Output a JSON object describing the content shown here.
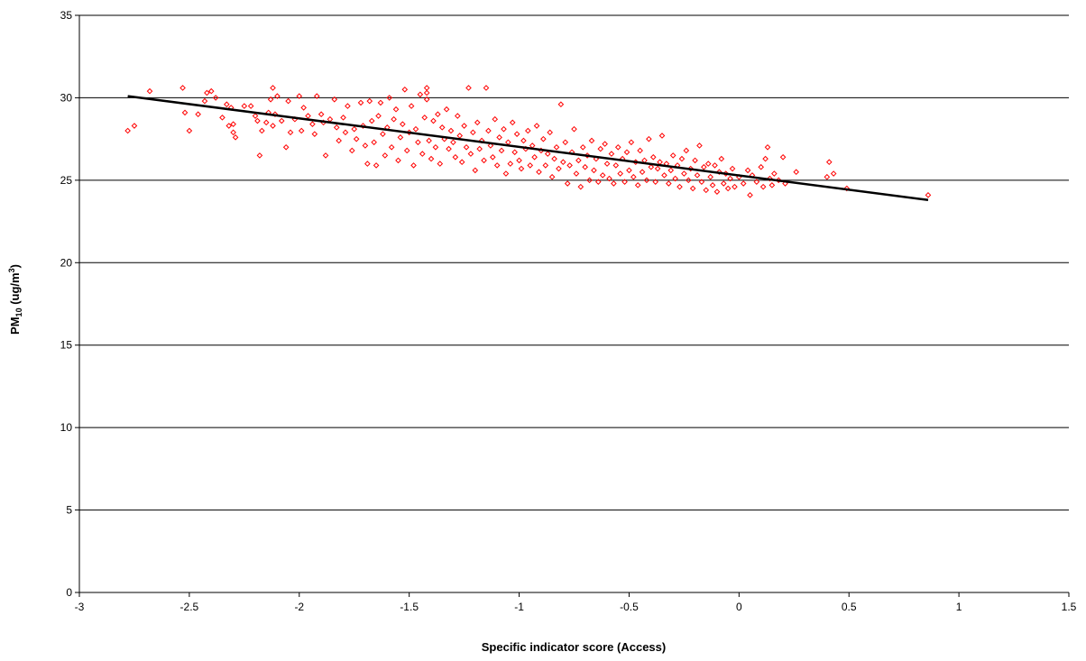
{
  "chart_data": {
    "type": "scatter",
    "title": "",
    "xlabel": "Specific indicator score (Access)",
    "ylabel": {
      "base": "PM",
      "sub": "10",
      "unit_pre": " (ug/m",
      "sup": "3",
      "unit_post": ")"
    },
    "xlim": [
      -3,
      1.5
    ],
    "ylim": [
      0,
      35
    ],
    "x_ticks": [
      -3,
      -2.5,
      -2,
      -1.5,
      -1,
      -0.5,
      0,
      0.5,
      1,
      1.5
    ],
    "x_tick_labels": [
      "-3",
      "-2.5",
      "-2",
      "-1.5",
      "-1",
      "-0.5",
      "0",
      "0.5",
      "1",
      "1.5"
    ],
    "y_ticks": [
      0,
      5,
      10,
      15,
      20,
      25,
      30,
      35
    ],
    "y_tick_labels": [
      "0",
      "5",
      "10",
      "15",
      "20",
      "25",
      "30",
      "35"
    ],
    "grid": {
      "horizontal": true,
      "vertical": false
    },
    "legend": "none",
    "colors": {
      "points": "#ff0000",
      "trendline": "#000000",
      "grid": "#000000"
    },
    "trendline": {
      "x": [
        -2.78,
        0.86
      ],
      "y": [
        30.1,
        23.8
      ]
    },
    "series": [
      {
        "points": [
          [
            -2.78,
            28.0
          ],
          [
            -2.75,
            28.3
          ],
          [
            -2.68,
            30.4
          ],
          [
            -2.53,
            30.6
          ],
          [
            -2.52,
            29.1
          ],
          [
            -2.5,
            28.0
          ],
          [
            -2.46,
            29.0
          ],
          [
            -2.43,
            29.8
          ],
          [
            -2.42,
            30.3
          ],
          [
            -2.4,
            30.4
          ],
          [
            -2.38,
            30.0
          ],
          [
            -2.35,
            28.8
          ],
          [
            -2.33,
            29.6
          ],
          [
            -2.32,
            28.3
          ],
          [
            -2.31,
            29.4
          ],
          [
            -2.3,
            27.9
          ],
          [
            -2.3,
            28.4
          ],
          [
            -2.29,
            27.6
          ],
          [
            -2.25,
            29.5
          ],
          [
            -2.22,
            29.5
          ],
          [
            -2.2,
            28.9
          ],
          [
            -2.19,
            28.6
          ],
          [
            -2.18,
            26.5
          ],
          [
            -2.17,
            28.0
          ],
          [
            -2.15,
            28.5
          ],
          [
            -2.14,
            29.1
          ],
          [
            -2.13,
            29.9
          ],
          [
            -2.12,
            28.3
          ],
          [
            -2.12,
            30.6
          ],
          [
            -2.11,
            29.0
          ],
          [
            -2.1,
            30.1
          ],
          [
            -2.08,
            28.6
          ],
          [
            -2.06,
            27.0
          ],
          [
            -2.05,
            29.8
          ],
          [
            -2.04,
            27.9
          ],
          [
            -2.02,
            28.7
          ],
          [
            -2.0,
            30.1
          ],
          [
            -1.99,
            28.0
          ],
          [
            -1.98,
            29.4
          ],
          [
            -1.96,
            28.9
          ],
          [
            -1.94,
            28.4
          ],
          [
            -1.93,
            27.8
          ],
          [
            -1.92,
            30.1
          ],
          [
            -1.9,
            29.0
          ],
          [
            -1.89,
            28.5
          ],
          [
            -1.88,
            26.5
          ],
          [
            -1.86,
            28.7
          ],
          [
            -1.84,
            29.9
          ],
          [
            -1.83,
            28.2
          ],
          [
            -1.82,
            27.4
          ],
          [
            -1.8,
            28.8
          ],
          [
            -1.79,
            27.9
          ],
          [
            -1.78,
            29.5
          ],
          [
            -1.76,
            26.8
          ],
          [
            -1.75,
            28.1
          ],
          [
            -1.74,
            27.5
          ],
          [
            -1.72,
            29.7
          ],
          [
            -1.71,
            28.3
          ],
          [
            -1.7,
            27.1
          ],
          [
            -1.69,
            26.0
          ],
          [
            -1.68,
            29.8
          ],
          [
            -1.67,
            28.6
          ],
          [
            -1.66,
            27.3
          ],
          [
            -1.65,
            25.9
          ],
          [
            -1.64,
            28.9
          ],
          [
            -1.63,
            29.7
          ],
          [
            -1.62,
            27.8
          ],
          [
            -1.61,
            26.5
          ],
          [
            -1.6,
            28.2
          ],
          [
            -1.59,
            30.0
          ],
          [
            -1.58,
            27.0
          ],
          [
            -1.57,
            28.7
          ],
          [
            -1.56,
            29.3
          ],
          [
            -1.55,
            26.2
          ],
          [
            -1.54,
            27.6
          ],
          [
            -1.53,
            28.4
          ],
          [
            -1.52,
            30.5
          ],
          [
            -1.51,
            26.8
          ],
          [
            -1.5,
            27.9
          ],
          [
            -1.49,
            29.5
          ],
          [
            -1.48,
            25.9
          ],
          [
            -1.47,
            28.1
          ],
          [
            -1.46,
            27.3
          ],
          [
            -1.45,
            30.2
          ],
          [
            -1.44,
            26.6
          ],
          [
            -1.43,
            28.8
          ],
          [
            -1.42,
            30.6
          ],
          [
            -1.42,
            30.3
          ],
          [
            -1.42,
            29.9
          ],
          [
            -1.41,
            27.4
          ],
          [
            -1.4,
            26.3
          ],
          [
            -1.39,
            28.6
          ],
          [
            -1.38,
            27.0
          ],
          [
            -1.37,
            29.0
          ],
          [
            -1.36,
            26.0
          ],
          [
            -1.35,
            28.2
          ],
          [
            -1.34,
            27.5
          ],
          [
            -1.33,
            29.3
          ],
          [
            -1.32,
            26.9
          ],
          [
            -1.31,
            28.0
          ],
          [
            -1.3,
            27.3
          ],
          [
            -1.29,
            26.4
          ],
          [
            -1.28,
            28.9
          ],
          [
            -1.27,
            27.7
          ],
          [
            -1.26,
            26.1
          ],
          [
            -1.25,
            28.3
          ],
          [
            -1.24,
            27.0
          ],
          [
            -1.23,
            30.6
          ],
          [
            -1.22,
            26.6
          ],
          [
            -1.21,
            27.9
          ],
          [
            -1.2,
            25.6
          ],
          [
            -1.19,
            28.5
          ],
          [
            -1.18,
            26.9
          ],
          [
            -1.17,
            27.4
          ],
          [
            -1.16,
            26.2
          ],
          [
            -1.15,
            30.6
          ],
          [
            -1.14,
            28.0
          ],
          [
            -1.13,
            27.1
          ],
          [
            -1.12,
            26.4
          ],
          [
            -1.11,
            28.7
          ],
          [
            -1.1,
            25.9
          ],
          [
            -1.09,
            27.6
          ],
          [
            -1.08,
            26.8
          ],
          [
            -1.07,
            28.1
          ],
          [
            -1.06,
            25.4
          ],
          [
            -1.05,
            27.3
          ],
          [
            -1.04,
            26.0
          ],
          [
            -1.03,
            28.5
          ],
          [
            -1.02,
            26.7
          ],
          [
            -1.01,
            27.8
          ],
          [
            -1.0,
            26.2
          ],
          [
            -0.99,
            25.7
          ],
          [
            -0.98,
            27.4
          ],
          [
            -0.97,
            26.9
          ],
          [
            -0.96,
            28.0
          ],
          [
            -0.95,
            25.9
          ],
          [
            -0.94,
            27.1
          ],
          [
            -0.93,
            26.4
          ],
          [
            -0.92,
            28.3
          ],
          [
            -0.91,
            25.5
          ],
          [
            -0.9,
            26.8
          ],
          [
            -0.89,
            27.5
          ],
          [
            -0.88,
            25.9
          ],
          [
            -0.87,
            26.6
          ],
          [
            -0.86,
            27.9
          ],
          [
            -0.85,
            25.2
          ],
          [
            -0.84,
            26.3
          ],
          [
            -0.83,
            27.0
          ],
          [
            -0.82,
            25.7
          ],
          [
            -0.81,
            29.6
          ],
          [
            -0.8,
            26.1
          ],
          [
            -0.79,
            27.3
          ],
          [
            -0.78,
            24.8
          ],
          [
            -0.77,
            25.9
          ],
          [
            -0.76,
            26.7
          ],
          [
            -0.75,
            28.1
          ],
          [
            -0.74,
            25.4
          ],
          [
            -0.73,
            26.2
          ],
          [
            -0.72,
            24.6
          ],
          [
            -0.71,
            27.0
          ],
          [
            -0.7,
            25.8
          ],
          [
            -0.69,
            26.5
          ],
          [
            -0.68,
            25.0
          ],
          [
            -0.67,
            27.4
          ],
          [
            -0.66,
            25.6
          ],
          [
            -0.65,
            26.3
          ],
          [
            -0.64,
            24.9
          ],
          [
            -0.63,
            26.9
          ],
          [
            -0.62,
            25.3
          ],
          [
            -0.61,
            27.2
          ],
          [
            -0.6,
            26.0
          ],
          [
            -0.59,
            25.1
          ],
          [
            -0.58,
            26.6
          ],
          [
            -0.57,
            24.8
          ],
          [
            -0.56,
            25.9
          ],
          [
            -0.55,
            27.0
          ],
          [
            -0.54,
            25.4
          ],
          [
            -0.53,
            26.3
          ],
          [
            -0.52,
            24.9
          ],
          [
            -0.51,
            26.7
          ],
          [
            -0.5,
            25.6
          ],
          [
            -0.49,
            27.3
          ],
          [
            -0.48,
            25.2
          ],
          [
            -0.47,
            26.1
          ],
          [
            -0.46,
            24.7
          ],
          [
            -0.45,
            26.8
          ],
          [
            -0.44,
            25.5
          ],
          [
            -0.43,
            26.2
          ],
          [
            -0.42,
            25.0
          ],
          [
            -0.41,
            27.5
          ],
          [
            -0.4,
            25.8
          ],
          [
            -0.39,
            26.4
          ],
          [
            -0.38,
            24.9
          ],
          [
            -0.37,
            25.7
          ],
          [
            -0.36,
            26.1
          ],
          [
            -0.35,
            27.7
          ],
          [
            -0.34,
            25.3
          ],
          [
            -0.33,
            26.0
          ],
          [
            -0.32,
            24.8
          ],
          [
            -0.31,
            25.6
          ],
          [
            -0.3,
            26.5
          ],
          [
            -0.29,
            25.1
          ],
          [
            -0.28,
            25.9
          ],
          [
            -0.27,
            24.6
          ],
          [
            -0.26,
            26.3
          ],
          [
            -0.25,
            25.4
          ],
          [
            -0.24,
            26.8
          ],
          [
            -0.23,
            25.0
          ],
          [
            -0.22,
            25.7
          ],
          [
            -0.21,
            24.5
          ],
          [
            -0.2,
            26.2
          ],
          [
            -0.19,
            25.3
          ],
          [
            -0.18,
            27.1
          ],
          [
            -0.17,
            24.9
          ],
          [
            -0.16,
            25.8
          ],
          [
            -0.15,
            24.4
          ],
          [
            -0.14,
            26.0
          ],
          [
            -0.13,
            25.2
          ],
          [
            -0.12,
            24.7
          ],
          [
            -0.11,
            25.9
          ],
          [
            -0.1,
            24.3
          ],
          [
            -0.09,
            25.5
          ],
          [
            -0.08,
            26.3
          ],
          [
            -0.07,
            24.8
          ],
          [
            -0.06,
            25.4
          ],
          [
            -0.05,
            24.5
          ],
          [
            -0.04,
            25.1
          ],
          [
            -0.03,
            25.7
          ],
          [
            -0.02,
            24.6
          ],
          [
            0.0,
            25.2
          ],
          [
            0.02,
            24.8
          ],
          [
            0.04,
            25.6
          ],
          [
            0.05,
            24.1
          ],
          [
            0.06,
            25.3
          ],
          [
            0.08,
            24.9
          ],
          [
            0.1,
            25.8
          ],
          [
            0.11,
            24.6
          ],
          [
            0.12,
            26.3
          ],
          [
            0.13,
            27.0
          ],
          [
            0.14,
            25.1
          ],
          [
            0.15,
            24.7
          ],
          [
            0.16,
            25.4
          ],
          [
            0.18,
            25.0
          ],
          [
            0.2,
            26.4
          ],
          [
            0.21,
            24.8
          ],
          [
            0.26,
            25.5
          ],
          [
            0.4,
            25.2
          ],
          [
            0.41,
            26.1
          ],
          [
            0.43,
            25.4
          ],
          [
            0.49,
            24.5
          ],
          [
            0.86,
            24.1
          ]
        ]
      }
    ]
  }
}
